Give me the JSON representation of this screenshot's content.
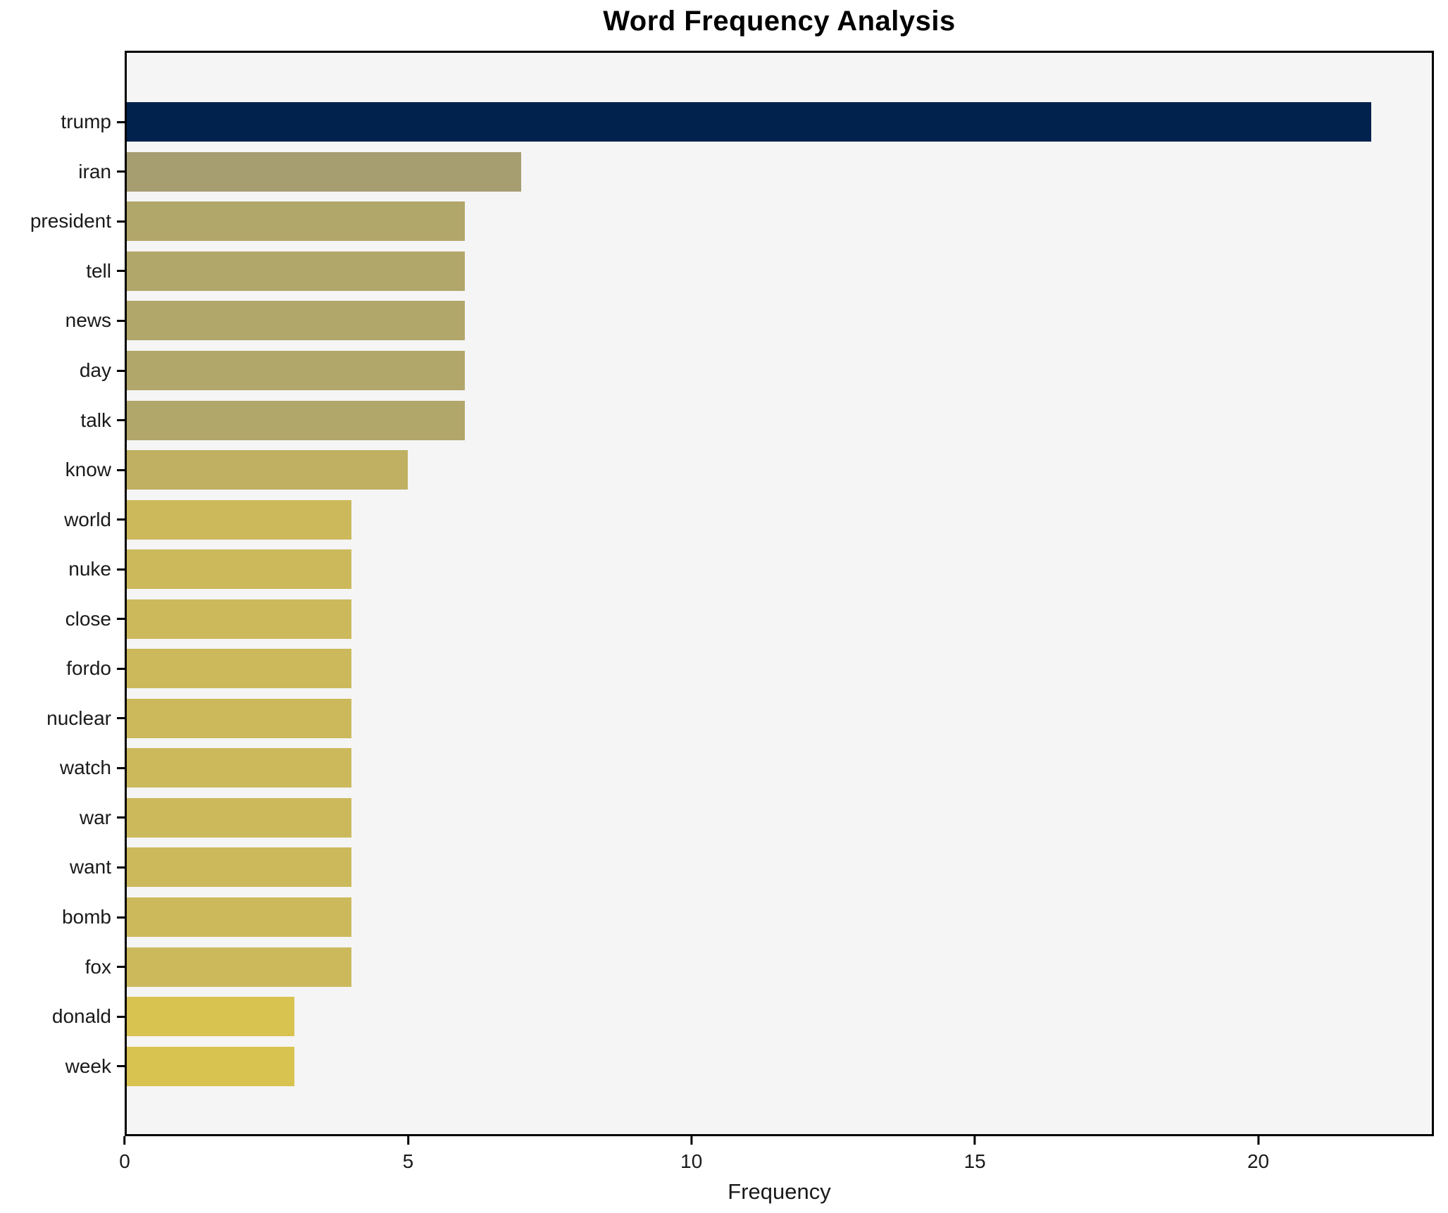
{
  "chart_data": {
    "type": "bar",
    "orientation": "horizontal",
    "title": "Word Frequency Analysis",
    "xlabel": "Frequency",
    "ylabel": "",
    "categories": [
      "trump",
      "iran",
      "president",
      "tell",
      "news",
      "day",
      "talk",
      "know",
      "world",
      "nuke",
      "close",
      "fordo",
      "nuclear",
      "watch",
      "war",
      "want",
      "bomb",
      "fox",
      "donald",
      "week"
    ],
    "values": [
      22,
      7,
      6,
      6,
      6,
      6,
      6,
      5,
      4,
      4,
      4,
      4,
      4,
      4,
      4,
      4,
      4,
      4,
      3,
      3
    ],
    "bar_colors": [
      "#00224d",
      "#a69d70",
      "#b2a76a",
      "#b2a76a",
      "#b2a76a",
      "#b2a76a",
      "#b2a76a",
      "#bfb062",
      "#cbb95c",
      "#cbb95c",
      "#cbb95c",
      "#cbb95c",
      "#cbb95c",
      "#cbb95c",
      "#cbb95c",
      "#cbb95c",
      "#cbb95c",
      "#cbb95c",
      "#d8c351",
      "#d8c351"
    ],
    "xticks": [
      0,
      5,
      10,
      15,
      20
    ],
    "xlim": [
      0,
      23.1
    ],
    "grid": false,
    "legend": null,
    "plot_background": "#f5f5f6",
    "figure_background": "#ffffff",
    "spine_color": "#000000",
    "text_color": "#1a1a1a",
    "accent_color": "#00224d"
  }
}
